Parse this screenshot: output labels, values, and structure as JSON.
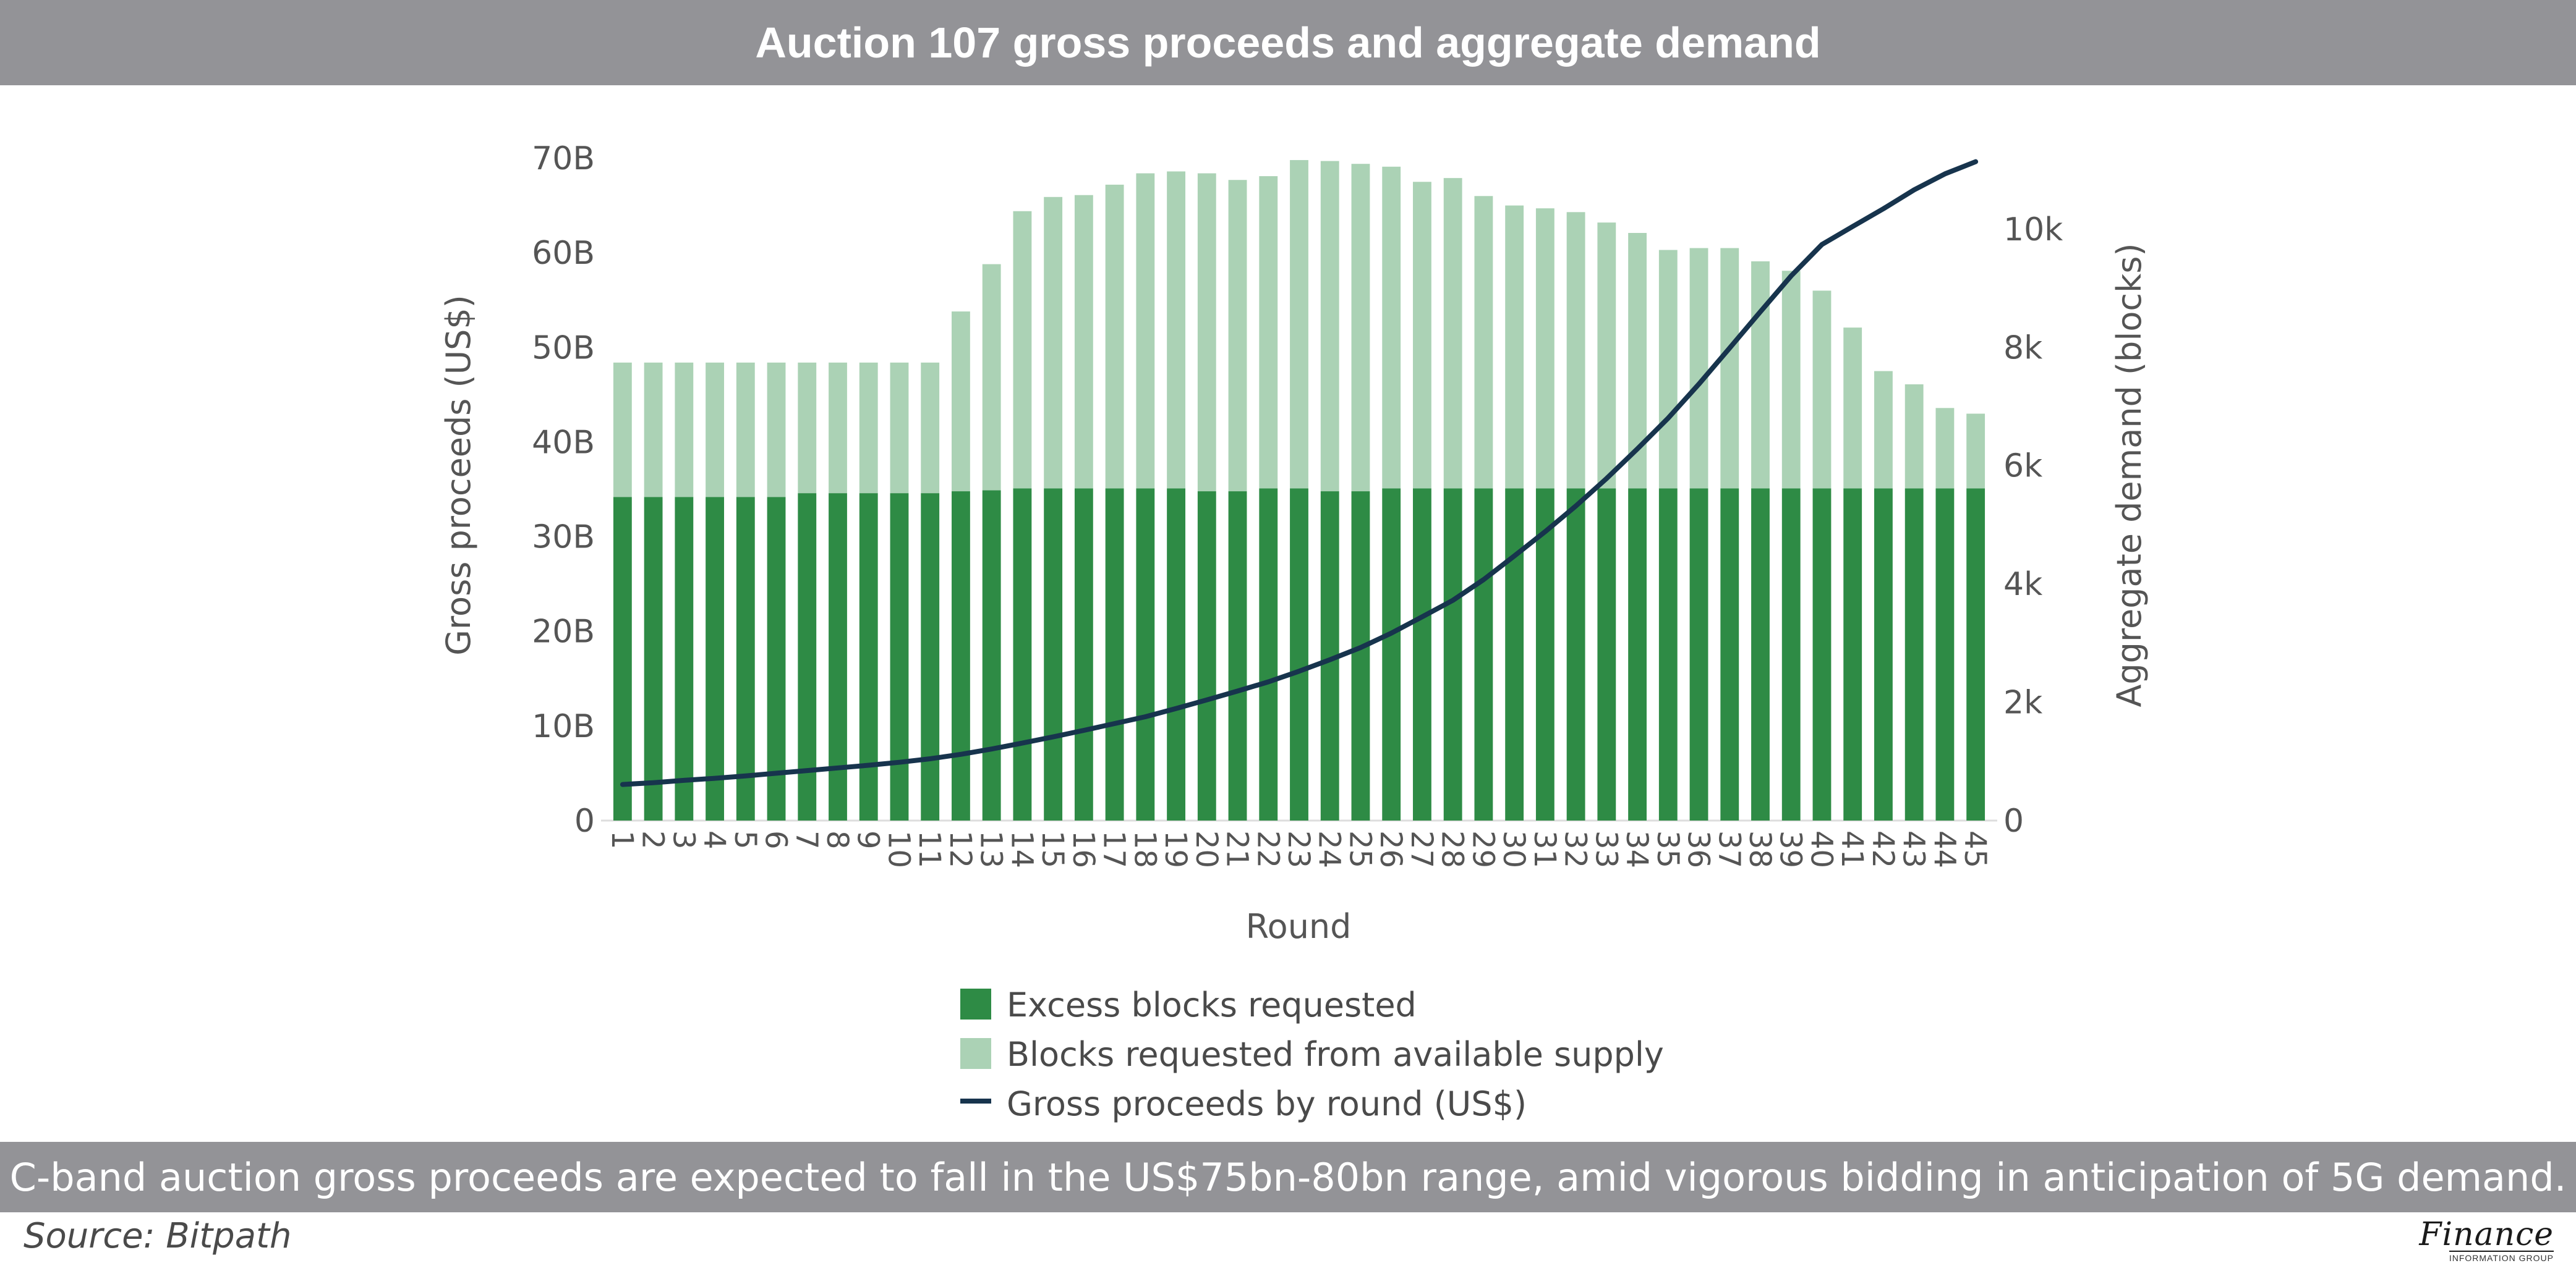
{
  "header": {
    "title": "Auction 107 gross proceeds and aggregate demand"
  },
  "caption": {
    "text": "C-band auction gross proceeds are expected to fall in the US$75bn-80bn range, amid vigorous bidding in anticipation of 5G demand."
  },
  "source": {
    "text": "Source: Bitpath"
  },
  "logo": {
    "main": "Finance",
    "sub": "INFORMATION GROUP"
  },
  "colors": {
    "excess": "#2e8b45",
    "available": "#abd2b5",
    "line": "#17344d",
    "axis": "#dddddd"
  },
  "chart_data": {
    "type": "bar",
    "stacked": true,
    "x_title": "Round",
    "y_left_title": "Gross proceeds (US$)",
    "y_right_title": "Aggregate demand (blocks)",
    "y_left_ticks": [
      "0",
      "10B",
      "20B",
      "30B",
      "40B",
      "50B",
      "60B",
      "70B"
    ],
    "y_left_range": [
      0,
      70
    ],
    "y_right_ticks": [
      "0",
      "2k",
      "4k",
      "6k",
      "8k",
      "10k"
    ],
    "y_right_range": [
      0,
      11200
    ],
    "categories": [
      "1",
      "2",
      "3",
      "4",
      "5",
      "6",
      "7",
      "8",
      "9",
      "10",
      "11",
      "12",
      "13",
      "14",
      "15",
      "16",
      "17",
      "18",
      "19",
      "20",
      "21",
      "22",
      "23",
      "24",
      "25",
      "26",
      "27",
      "28",
      "29",
      "30",
      "31",
      "32",
      "33",
      "34",
      "35",
      "36",
      "37",
      "38",
      "39",
      "40",
      "41",
      "42",
      "43",
      "44",
      "45"
    ],
    "series": [
      {
        "name": "Excess blocks requested",
        "kind": "bar",
        "axis": "left",
        "values": [
          34.2,
          34.2,
          34.2,
          34.2,
          34.2,
          34.2,
          34.6,
          34.6,
          34.6,
          34.6,
          34.6,
          34.8,
          34.9,
          35.1,
          35.1,
          35.1,
          35.1,
          35.1,
          35.1,
          34.8,
          34.8,
          35.1,
          35.1,
          34.8,
          34.8,
          35.1,
          35.1,
          35.1,
          35.1,
          35.1,
          35.1,
          35.1,
          35.1,
          35.1,
          35.1,
          35.1,
          35.1,
          35.1,
          35.1,
          35.1,
          35.1,
          35.1,
          35.1,
          35.1,
          35.1
        ]
      },
      {
        "name": "Blocks requested from available supply",
        "kind": "bar",
        "axis": "left",
        "values": [
          14.2,
          14.2,
          14.2,
          14.2,
          14.2,
          14.2,
          13.8,
          13.8,
          13.8,
          13.8,
          13.8,
          19.0,
          23.9,
          29.3,
          30.8,
          31.0,
          32.1,
          33.3,
          33.5,
          33.6,
          32.9,
          33.0,
          34.7,
          34.9,
          34.6,
          34.0,
          32.4,
          32.8,
          30.9,
          29.9,
          29.6,
          29.2,
          28.1,
          27.0,
          25.2,
          25.4,
          25.4,
          24.0,
          23.0,
          20.9,
          17.0,
          12.4,
          11.0,
          8.5,
          7.9
        ]
      },
      {
        "name": "Gross proceeds by round (US$)",
        "kind": "line",
        "axis": "right",
        "values": [
          610,
          640,
          680,
          715,
          755,
          800,
          845,
          890,
          935,
          985,
          1045,
          1120,
          1210,
          1310,
          1415,
          1525,
          1640,
          1755,
          1895,
          2040,
          2190,
          2345,
          2525,
          2720,
          2925,
          3170,
          3445,
          3725,
          4075,
          4475,
          4885,
          5320,
          5785,
          6285,
          6805,
          7380,
          7990,
          8605,
          9210,
          9740,
          10045,
          10345,
          10665,
          10935,
          11140
        ]
      }
    ],
    "legend": [
      "Excess blocks requested",
      "Blocks requested from available supply",
      "Gross proceeds by round (US$)"
    ]
  }
}
